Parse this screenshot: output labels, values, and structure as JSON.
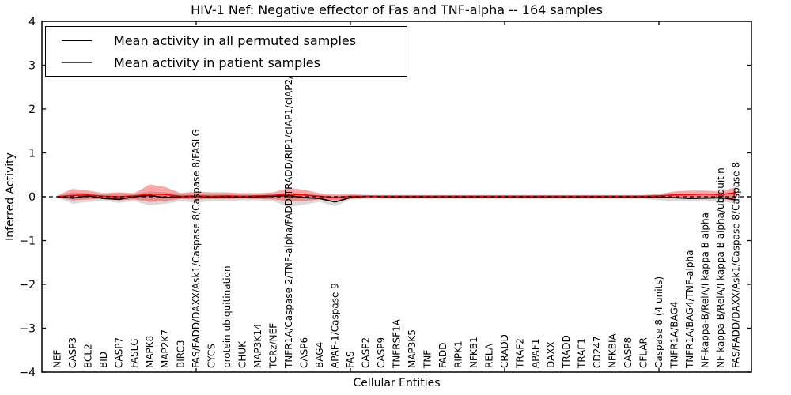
{
  "chart_data": {
    "type": "line",
    "title": "HIV-1 Nef: Negative effector of Fas and TNF-alpha -- 164 samples",
    "xlabel": "Cellular Entities",
    "ylabel": "Inferred Activity",
    "ylim": [
      -4,
      4
    ],
    "yticks": [
      4,
      3,
      2,
      1,
      0,
      -1,
      -2,
      -3,
      -4
    ],
    "xtick_positions": [
      10,
      20,
      30,
      40
    ],
    "grid": false,
    "legend_position": "upper left",
    "categories": [
      "NEF",
      "CASP3",
      "BCL2",
      "BID",
      "CASP7",
      "FASLG",
      "MAPK8",
      "MAP2K7",
      "BIRC3",
      "FAS/FADD/DAXX/Ask1/Caspase 8/Caspase 8/FASLG",
      "CYCS",
      "protein ubiquitination",
      "CHUK",
      "MAP3K14",
      "TCRz/NEF",
      "TNFR1A/Caspase 2/TNF-alpha/FADD/TRADD/RIP1/cIAP1/cIAP2/TRAF2",
      "CASP6",
      "BAG4",
      "APAF-1/Caspase 9",
      "FAS",
      "CASP2",
      "CASP9",
      "TNFRSF1A",
      "MAP3K5",
      "TNF",
      "FADD",
      "RIPK1",
      "NFKB1",
      "RELA",
      "CRADD",
      "TRAF2",
      "APAF1",
      "DAXX",
      "TRADD",
      "TRAF1",
      "CD247",
      "NFKBIA",
      "CASP8",
      "CFLAR",
      "Caspase 8 (4 units)",
      "TNFR1A/BAG4",
      "TNFR1A/BAG4/TNF-alpha",
      "NF-kappa-B/RelA/I kappa B alpha",
      "NF-kappa-B/RelA/I kappa B alpha/ubiquitin",
      "FAS/FADD/DAXX/Ask1/Caspase 8/Caspase 8"
    ],
    "series": [
      {
        "name": "Mean activity in all permuted samples",
        "color": "#000000",
        "style": "solid",
        "values": [
          0.0,
          -0.03,
          0.02,
          -0.04,
          -0.06,
          0.0,
          0.03,
          -0.02,
          0.0,
          0.01,
          -0.01,
          0.0,
          -0.02,
          0.0,
          0.01,
          0.03,
          -0.02,
          -0.04,
          -0.12,
          -0.02,
          0.01,
          0.0,
          0.0,
          0.0,
          0.0,
          0.0,
          0.0,
          0.0,
          0.0,
          0.0,
          0.0,
          0.0,
          0.0,
          0.0,
          0.0,
          0.0,
          0.0,
          0.0,
          0.0,
          -0.01,
          -0.02,
          -0.04,
          -0.03,
          -0.02,
          -0.07
        ],
        "band_upper": [
          0.02,
          0.1,
          0.08,
          0.06,
          0.08,
          0.06,
          0.12,
          0.1,
          0.06,
          0.08,
          0.06,
          0.05,
          0.05,
          0.04,
          0.05,
          0.1,
          0.06,
          0.04,
          0.02,
          0.03,
          0.03,
          0.03,
          0.03,
          0.03,
          0.03,
          0.03,
          0.03,
          0.03,
          0.03,
          0.03,
          0.03,
          0.03,
          0.03,
          0.03,
          0.03,
          0.03,
          0.03,
          0.03,
          0.03,
          0.04,
          0.05,
          0.05,
          0.04,
          0.05,
          0.1
        ],
        "band_lower": [
          -0.02,
          -0.16,
          -0.12,
          -0.1,
          -0.14,
          -0.1,
          -0.2,
          -0.16,
          -0.1,
          -0.14,
          -0.1,
          -0.1,
          -0.08,
          -0.08,
          -0.1,
          -0.24,
          -0.18,
          -0.12,
          -0.22,
          -0.06,
          -0.05,
          -0.05,
          -0.05,
          -0.05,
          -0.05,
          -0.05,
          -0.05,
          -0.05,
          -0.05,
          -0.05,
          -0.05,
          -0.05,
          -0.05,
          -0.05,
          -0.05,
          -0.05,
          -0.05,
          -0.05,
          -0.05,
          -0.08,
          -0.1,
          -0.1,
          -0.08,
          -0.1,
          -0.16
        ],
        "band_color": "rgba(0,0,0,0.15)"
      },
      {
        "name": "Mean activity in patient samples",
        "color": "#ff0000",
        "style": "solid",
        "values": [
          0.0,
          0.03,
          0.04,
          0.01,
          0.0,
          0.02,
          0.06,
          0.05,
          0.01,
          0.02,
          0.01,
          0.02,
          0.01,
          0.02,
          0.03,
          0.06,
          0.04,
          0.01,
          -0.02,
          0.01,
          0.01,
          0.01,
          0.01,
          0.01,
          0.01,
          0.01,
          0.01,
          0.01,
          0.01,
          0.01,
          0.01,
          0.01,
          0.01,
          0.01,
          0.01,
          0.01,
          0.01,
          0.01,
          0.01,
          0.02,
          0.04,
          0.05,
          0.06,
          0.05,
          0.09
        ],
        "band_upper": [
          0.03,
          0.18,
          0.14,
          0.08,
          0.1,
          0.08,
          0.28,
          0.22,
          0.08,
          0.12,
          0.1,
          0.1,
          0.08,
          0.08,
          0.1,
          0.2,
          0.16,
          0.08,
          0.05,
          0.06,
          0.04,
          0.04,
          0.04,
          0.04,
          0.04,
          0.04,
          0.04,
          0.04,
          0.04,
          0.04,
          0.04,
          0.04,
          0.04,
          0.04,
          0.04,
          0.04,
          0.04,
          0.04,
          0.04,
          0.06,
          0.12,
          0.14,
          0.14,
          0.12,
          0.22
        ],
        "band_lower": [
          -0.02,
          -0.08,
          -0.06,
          -0.05,
          -0.08,
          -0.06,
          -0.12,
          -0.1,
          -0.05,
          -0.06,
          -0.05,
          -0.05,
          -0.04,
          -0.05,
          -0.06,
          -0.1,
          -0.1,
          -0.06,
          -0.08,
          -0.04,
          -0.02,
          -0.02,
          -0.02,
          -0.02,
          -0.02,
          -0.02,
          -0.02,
          -0.02,
          -0.02,
          -0.02,
          -0.02,
          -0.02,
          -0.02,
          -0.02,
          -0.02,
          -0.02,
          -0.02,
          -0.02,
          -0.02,
          -0.02,
          -0.04,
          -0.05,
          -0.06,
          -0.05,
          -0.1
        ],
        "band_color": "rgba(255,0,0,0.35)"
      }
    ],
    "reference_line": {
      "y": 0,
      "style": "dashed",
      "color": "#000000"
    }
  },
  "legend": {
    "entries": [
      {
        "label": "Mean activity in all permuted samples",
        "color": "#000000"
      },
      {
        "label": "Mean activity in patient samples",
        "color": "#ff0000"
      }
    ]
  }
}
